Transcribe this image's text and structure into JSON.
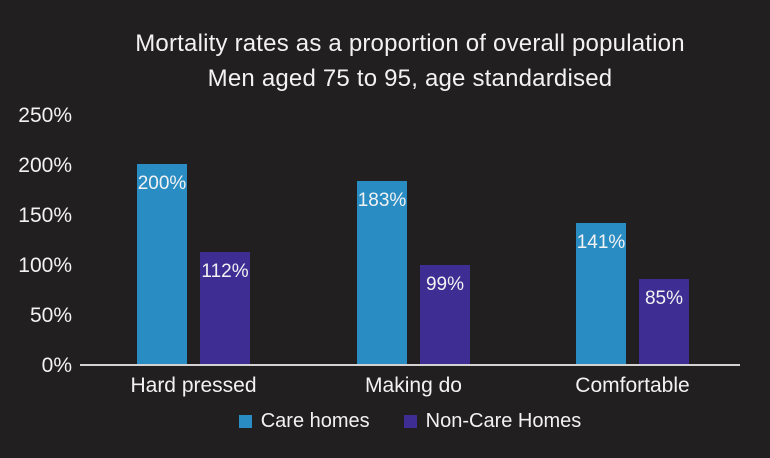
{
  "chart_data": {
    "type": "bar",
    "title": "Mortality rates as a proportion of overall population",
    "subtitle": "Men aged 75 to 95, age standardised",
    "categories": [
      "Hard pressed",
      "Making do",
      "Comfortable"
    ],
    "series": [
      {
        "name": "Care homes",
        "color": "#298dc4",
        "values": [
          200,
          183,
          141
        ]
      },
      {
        "name": "Non-Care Homes",
        "color": "#3e2d93",
        "values": [
          112,
          99,
          85
        ]
      }
    ],
    "value_label_format": "percent",
    "yticks": [
      0,
      50,
      100,
      150,
      200,
      250
    ],
    "ytick_labels": [
      "0%",
      "50%",
      "100%",
      "150%",
      "200%",
      "250%"
    ],
    "ylim": [
      0,
      250
    ],
    "xlabel": "",
    "ylabel": "",
    "grid": false,
    "legend_position": "bottom"
  },
  "colors": {
    "background": "#211f20",
    "text": "#f3f2f2",
    "axis_line": "#d4d3d3"
  }
}
